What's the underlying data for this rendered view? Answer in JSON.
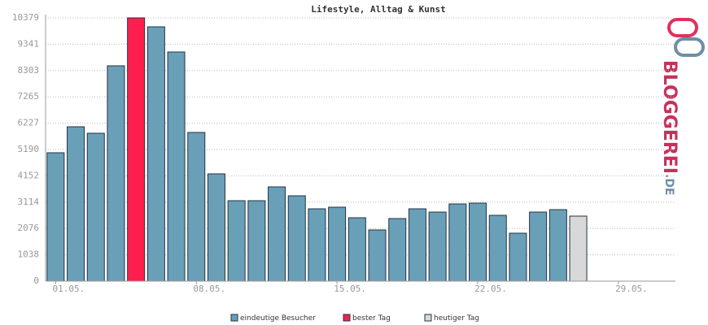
{
  "chart_data": {
    "type": "bar",
    "title": "Lifestyle, Alltag & Kunst",
    "categories": [
      "01.05.",
      null,
      null,
      null,
      null,
      null,
      null,
      "08.05.",
      null,
      null,
      null,
      null,
      null,
      null,
      "15.05.",
      null,
      null,
      null,
      null,
      null,
      null,
      "22.05.",
      null,
      null,
      null,
      null,
      null,
      null,
      "29.05.",
      null,
      null
    ],
    "values": [
      5061,
      6086,
      5830,
      8489,
      10379,
      10027,
      9034,
      5862,
      4229,
      3171,
      3171,
      3716,
      3364,
      2851,
      2915,
      2499,
      2018,
      2467,
      2851,
      2723,
      3043,
      3075,
      2595,
      1890,
      2723,
      2819,
      2563,
      null,
      null,
      null,
      null
    ],
    "colors": [
      "#6a9fb8",
      "#6a9fb8",
      "#6a9fb8",
      "#6a9fb8",
      "#ff1f4f",
      "#6a9fb8",
      "#6a9fb8",
      "#6a9fb8",
      "#6a9fb8",
      "#6a9fb8",
      "#6a9fb8",
      "#6a9fb8",
      "#6a9fb8",
      "#6a9fb8",
      "#6a9fb8",
      "#6a9fb8",
      "#6a9fb8",
      "#6a9fb8",
      "#6a9fb8",
      "#6a9fb8",
      "#6a9fb8",
      "#6a9fb8",
      "#6a9fb8",
      "#6a9fb8",
      "#6a9fb8",
      "#6a9fb8",
      "#d8d8d8",
      null,
      null,
      null,
      null
    ],
    "ylim": [
      0,
      10379
    ],
    "yticks": [
      0,
      1038,
      2076,
      3114,
      4152,
      5190,
      6227,
      7265,
      8303,
      9341,
      10379
    ],
    "grid": true,
    "legend": [
      {
        "name": "eindeutige Besucher",
        "color": "#6a9fb8"
      },
      {
        "name": "bester Tag",
        "color": "#ff1f4f"
      },
      {
        "name": "heutiger Tag",
        "color": "#d8d8d8"
      }
    ]
  },
  "logo": {
    "name": "BLOGGEREI",
    "suffix": ".DE"
  }
}
